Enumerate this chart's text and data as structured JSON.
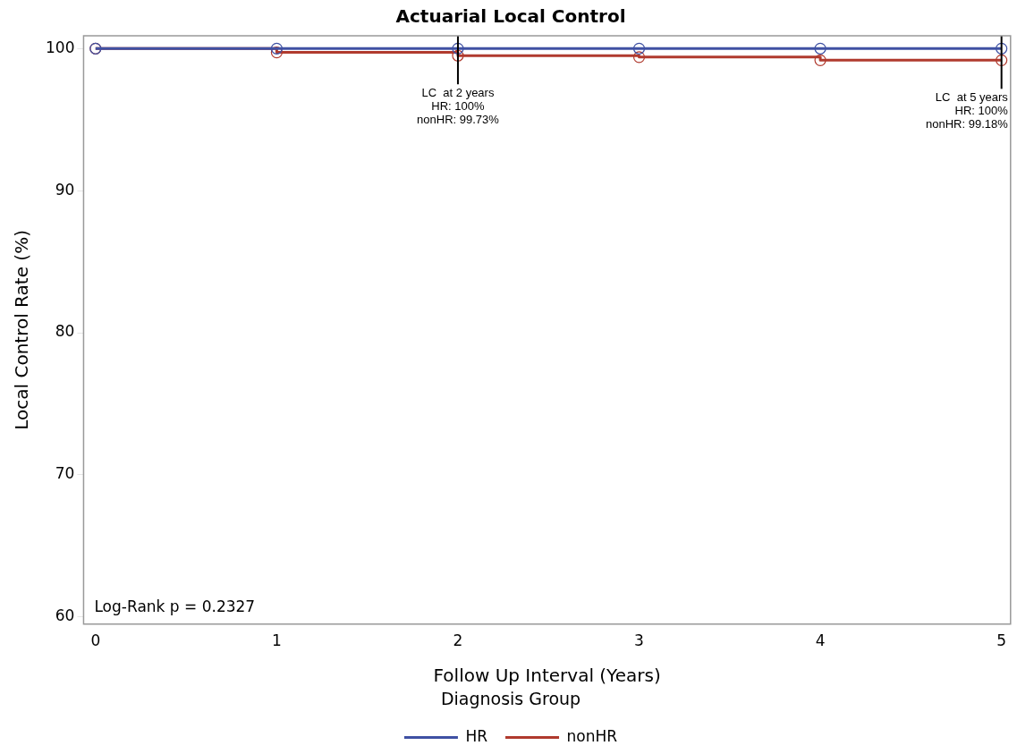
{
  "chart_data": {
    "type": "step",
    "title": "Actuarial Local Control",
    "xlabel": "Follow Up Interval (Years)",
    "ylabel": "Local Control Rate (%)",
    "legend_title": "Diagnosis Group",
    "x": [
      0,
      1,
      2,
      3,
      4,
      5
    ],
    "series": [
      {
        "name": "HR",
        "color": "#3f51a3",
        "values": [
          100,
          100,
          100,
          100,
          100,
          100
        ]
      },
      {
        "name": "nonHR",
        "color": "#b03a2e",
        "values": [
          100,
          99.73,
          99.5,
          99.4,
          99.18,
          99.18
        ]
      }
    ],
    "xlim": [
      -0.066,
      5.05
    ],
    "xticks": [
      0,
      1,
      2,
      3,
      4,
      5
    ],
    "ylim": [
      59.5,
      100.9
    ],
    "yticks": [
      60,
      70,
      80,
      90,
      100
    ],
    "grid": false,
    "legend": "bottom",
    "marker": "circle",
    "line_style": "solid",
    "annotations": [
      {
        "text": "LC  at 2 years\nHR: 100%\nnonHR: 99.73%",
        "x": 2,
        "y": 99.5
      },
      {
        "text": "LC  at 5 years\nHR: 100%\nnonHR: 99.18%",
        "x": 5,
        "y": 99.18
      },
      "Log-Rank p = 0.2327"
    ]
  }
}
